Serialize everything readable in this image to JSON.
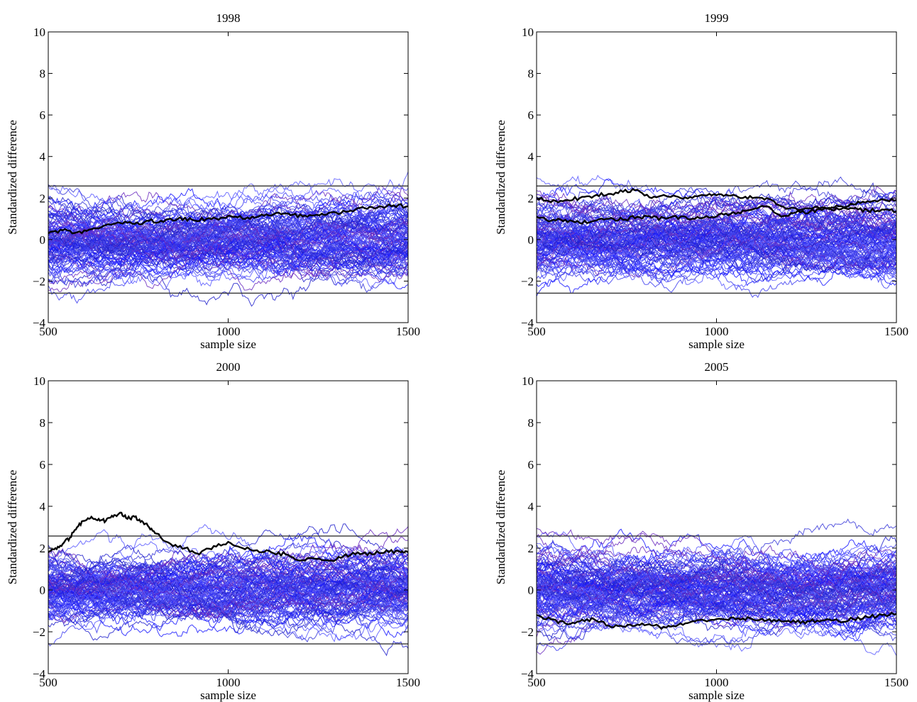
{
  "chart_data": [
    {
      "type": "line",
      "title": "1998",
      "xlabel": "sample size",
      "ylabel": "Standardized difference",
      "xlim": [
        500,
        1500
      ],
      "ylim": [
        -4,
        10
      ],
      "xticks": [
        "500",
        "1000",
        "1500"
      ],
      "yticks": [
        "−4",
        "−2",
        "0",
        "2",
        "4",
        "6",
        "8",
        "10"
      ],
      "reference_lines": [
        2.58,
        -2.58
      ],
      "background_series": {
        "count": 120,
        "spread_sd": 0.95,
        "colors": [
          "#1a1aff",
          "#3b3bd9",
          "#5a5aff",
          "#6b2bc0",
          "#2222cc",
          "#4040f0"
        ]
      },
      "highlight_series": [
        {
          "x": [
            500,
            540,
            580,
            620,
            660,
            700,
            740,
            780,
            820,
            860,
            900,
            940,
            980,
            1020,
            1060,
            1100,
            1140,
            1180,
            1220,
            1260,
            1300,
            1340,
            1380,
            1420,
            1460,
            1500
          ],
          "y": [
            0.3,
            0.45,
            0.35,
            0.5,
            0.7,
            0.8,
            0.75,
            0.9,
            0.85,
            1.0,
            0.95,
            1.0,
            1.05,
            1.1,
            1.0,
            1.15,
            1.3,
            1.2,
            1.1,
            1.25,
            1.3,
            1.4,
            1.5,
            1.6,
            1.65,
            1.6
          ]
        }
      ],
      "seed": 11
    },
    {
      "type": "line",
      "title": "1999",
      "xlabel": "sample size",
      "ylabel": "Standardized difference",
      "xlim": [
        500,
        1500
      ],
      "ylim": [
        -4,
        10
      ],
      "xticks": [
        "500",
        "1000",
        "1500"
      ],
      "yticks": [
        "−4",
        "−2",
        "0",
        "2",
        "4",
        "6",
        "8",
        "10"
      ],
      "reference_lines": [
        2.58,
        -2.58
      ],
      "background_series": {
        "count": 120,
        "spread_sd": 0.95,
        "colors": [
          "#1a1aff",
          "#3b3bd9",
          "#5a5aff",
          "#6b2bc0",
          "#2222cc",
          "#4040f0"
        ]
      },
      "highlight_series": [
        {
          "x": [
            500,
            540,
            580,
            620,
            660,
            700,
            740,
            780,
            820,
            860,
            900,
            940,
            980,
            1020,
            1060,
            1100,
            1140,
            1180,
            1220,
            1260,
            1300,
            1340,
            1380,
            1420,
            1460,
            1500
          ],
          "y": [
            2.0,
            1.8,
            1.9,
            2.0,
            2.1,
            2.2,
            2.3,
            2.4,
            2.0,
            2.1,
            2.0,
            2.1,
            2.2,
            2.1,
            2.05,
            2.0,
            2.0,
            1.6,
            1.5,
            1.5,
            1.55,
            1.45,
            1.5,
            1.4,
            1.45,
            1.35
          ]
        },
        {
          "x": [
            500,
            540,
            580,
            620,
            660,
            700,
            740,
            780,
            820,
            860,
            900,
            940,
            980,
            1020,
            1060,
            1100,
            1140,
            1180,
            1220,
            1260,
            1300,
            1340,
            1380,
            1420,
            1460,
            1500
          ],
          "y": [
            1.1,
            0.9,
            0.95,
            0.8,
            0.9,
            1.0,
            0.95,
            1.1,
            1.05,
            1.0,
            1.1,
            1.0,
            1.05,
            1.2,
            1.3,
            1.45,
            1.6,
            1.1,
            1.3,
            1.35,
            1.5,
            1.6,
            1.7,
            1.85,
            1.95,
            1.9
          ]
        }
      ],
      "seed": 23
    },
    {
      "type": "line",
      "title": "2000",
      "xlabel": "sample size",
      "ylabel": "Standardized difference",
      "xlim": [
        500,
        1500
      ],
      "ylim": [
        -4,
        10
      ],
      "xticks": [
        "500",
        "1000",
        "1500"
      ],
      "yticks": [
        "−4",
        "−2",
        "0",
        "2",
        "4",
        "6",
        "8",
        "10"
      ],
      "reference_lines": [
        2.58,
        -2.58
      ],
      "background_series": {
        "count": 120,
        "spread_sd": 0.95,
        "colors": [
          "#1a1aff",
          "#3b3bd9",
          "#5a5aff",
          "#6b2bc0",
          "#2222cc",
          "#4040f0"
        ]
      },
      "highlight_series": [
        {
          "x": [
            500,
            520,
            540,
            560,
            580,
            600,
            620,
            640,
            660,
            680,
            700,
            720,
            740,
            760,
            780,
            800,
            840,
            880,
            920,
            960,
            1000,
            1040,
            1080,
            1120,
            1160,
            1200,
            1240,
            1280,
            1320,
            1360,
            1400,
            1440,
            1480,
            1500
          ],
          "y": [
            1.8,
            2.0,
            2.2,
            2.5,
            3.0,
            3.3,
            3.5,
            3.4,
            3.3,
            3.5,
            3.7,
            3.4,
            3.5,
            3.3,
            3.0,
            2.7,
            2.2,
            2.0,
            1.7,
            2.1,
            2.3,
            2.0,
            1.9,
            1.8,
            1.7,
            1.4,
            1.5,
            1.4,
            1.6,
            1.8,
            1.7,
            1.9,
            1.8,
            1.8
          ]
        }
      ],
      "seed": 37
    },
    {
      "type": "line",
      "title": "2005",
      "xlabel": "sample size",
      "ylabel": "Standardized difference",
      "xlim": [
        500,
        1500
      ],
      "ylim": [
        -4,
        10
      ],
      "xticks": [
        "500",
        "1000",
        "1500"
      ],
      "yticks": [
        "−4",
        "−2",
        "0",
        "2",
        "4",
        "6",
        "8",
        "10"
      ],
      "reference_lines": [
        2.58,
        -2.58
      ],
      "background_series": {
        "count": 130,
        "spread_sd": 1.05,
        "colors": [
          "#1a1aff",
          "#3b3bd9",
          "#5a5aff",
          "#6b2bc0",
          "#2222cc",
          "#4040f0"
        ]
      },
      "highlight_series": [
        {
          "x": [
            500,
            540,
            580,
            620,
            660,
            700,
            740,
            780,
            820,
            860,
            900,
            940,
            980,
            1020,
            1060,
            1100,
            1140,
            1180,
            1220,
            1260,
            1300,
            1340,
            1380,
            1420,
            1460,
            1500
          ],
          "y": [
            -1.2,
            -1.4,
            -1.6,
            -1.5,
            -1.4,
            -1.7,
            -1.75,
            -1.65,
            -1.7,
            -1.8,
            -1.6,
            -1.5,
            -1.45,
            -1.4,
            -1.35,
            -1.4,
            -1.45,
            -1.5,
            -1.55,
            -1.5,
            -1.45,
            -1.5,
            -1.4,
            -1.3,
            -1.2,
            -1.15
          ]
        }
      ],
      "seed": 51
    }
  ]
}
